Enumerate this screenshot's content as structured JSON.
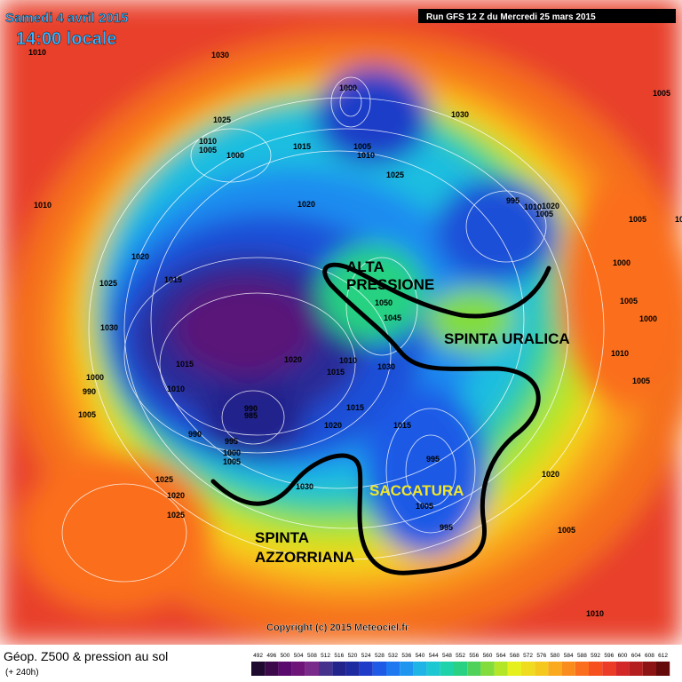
{
  "header": {
    "date": "Samedi 4 avril 2015",
    "time": "14:00 locale",
    "run": "Run GFS 12 Z du Mercredi 25 mars 2015"
  },
  "annotations": [
    "ALTA PRESSIONE",
    "SPINTA URALICA",
    "SACCATURA",
    "SPINTA AZZORRIANA"
  ],
  "copyright": "Copyright (c) 2015 Meteociel.fr",
  "footer": {
    "title": "Géop. Z500 & pression au sol",
    "lead": "(+ 240h)"
  },
  "pressure_labels": [
    "1010",
    "1030",
    "1000",
    "1025",
    "1010",
    "1005",
    "1000",
    "1015",
    "1005",
    "1010",
    "1030",
    "1025",
    "1020",
    "995",
    "1010",
    "1005",
    "1010",
    "1020",
    "1025",
    "1015",
    "1030",
    "1000",
    "990",
    "1005",
    "1010",
    "1015",
    "990",
    "985",
    "990",
    "995",
    "1000",
    "1005",
    "1020",
    "1015",
    "1020",
    "1010",
    "1015",
    "1030",
    "1050",
    "1045",
    "1015",
    "995",
    "1005",
    "995",
    "1020",
    "1025",
    "1020",
    "1025",
    "1030",
    "1000",
    "1005",
    "1000",
    "1010",
    "1005",
    "1010",
    "1005",
    "1020",
    "1005",
    "1005",
    "1010"
  ],
  "scale": [
    {
      "label": "492",
      "color": "#1e0a2e"
    },
    {
      "label": "496",
      "color": "#3c0a4b"
    },
    {
      "label": "500",
      "color": "#5a0a6e"
    },
    {
      "label": "504",
      "color": "#6e1478"
    },
    {
      "label": "508",
      "color": "#7a2a8a"
    },
    {
      "label": "512",
      "color": "#46328c"
    },
    {
      "label": "516",
      "color": "#23238c"
    },
    {
      "label": "520",
      "color": "#1e2aa0"
    },
    {
      "label": "524",
      "color": "#1e3cc8"
    },
    {
      "label": "528",
      "color": "#1e5ae6"
    },
    {
      "label": "532",
      "color": "#1e78f0"
    },
    {
      "label": "536",
      "color": "#1e96f0"
    },
    {
      "label": "540",
      "color": "#1eb4e6"
    },
    {
      "label": "544",
      "color": "#1ec8d2"
    },
    {
      "label": "548",
      "color": "#1ed2aa"
    },
    {
      "label": "552",
      "color": "#28d282"
    },
    {
      "label": "556",
      "color": "#50d25a"
    },
    {
      "label": "560",
      "color": "#82dc3c"
    },
    {
      "label": "564",
      "color": "#b4e628"
    },
    {
      "label": "568",
      "color": "#e6f01e"
    },
    {
      "label": "572",
      "color": "#f0dc1e"
    },
    {
      "label": "576",
      "color": "#f5c81e"
    },
    {
      "label": "580",
      "color": "#faaa1e"
    },
    {
      "label": "584",
      "color": "#fa8c1e"
    },
    {
      "label": "588",
      "color": "#fa6e1e"
    },
    {
      "label": "592",
      "color": "#f5501e"
    },
    {
      "label": "596",
      "color": "#eb3c28"
    },
    {
      "label": "600",
      "color": "#d22828"
    },
    {
      "label": "604",
      "color": "#b41e1e"
    },
    {
      "label": "608",
      "color": "#8c1414"
    },
    {
      "label": "612",
      "color": "#640a0a"
    }
  ]
}
